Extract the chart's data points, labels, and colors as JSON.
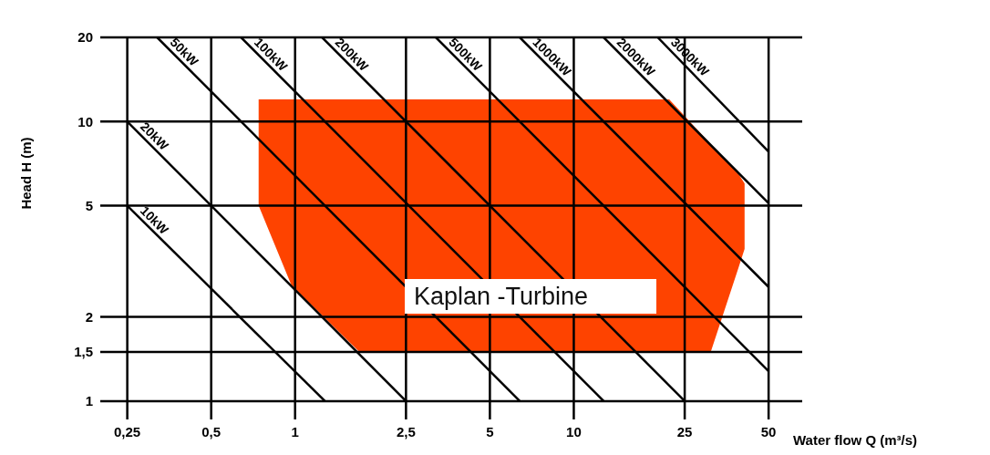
{
  "chart_data": {
    "type": "line",
    "xlabel": "Water flow Q (m³/s)",
    "ylabel": "Head H (m)",
    "log": "xy",
    "xlim": [
      0.2,
      66
    ],
    "ylim": [
      0.86,
      20
    ],
    "xticks": [
      {
        "value": 0.25,
        "label": "0,25"
      },
      {
        "value": 0.5,
        "label": "0,5"
      },
      1,
      {
        "value": 2.5,
        "label": "2,5"
      },
      5,
      10,
      25,
      50
    ],
    "yticks": [
      1,
      {
        "value": 1.5,
        "label": "1,5"
      },
      2,
      5,
      10,
      20
    ],
    "grid": true,
    "annotations": [
      "Kaplan -Turbine"
    ],
    "series": [
      {
        "type": "area",
        "color": "#fe4300",
        "x": [
          0.74,
          0.97,
          1.7,
          22,
          31,
          39,
          41
        ],
        "values": [
          null,
          null,
          null,
          null,
          null,
          null,
          null
        ],
        "upper": [
          12,
          12,
          12,
          12,
          8.3,
          6.5,
          6
        ],
        "lower": [
          5,
          2.6,
          1.5,
          1.5,
          1.5,
          3,
          3.5
        ]
      },
      {
        "name": "10kW",
        "color": "#000000",
        "x": [
          0.25,
          1.28
        ],
        "values": [
          5,
          1
        ]
      },
      {
        "name": "20kW",
        "color": "#000000",
        "x": [
          0.25,
          2.5
        ],
        "values": [
          10,
          1
        ]
      },
      {
        "name": "50kW",
        "color": "#000000",
        "x": [
          0.32,
          6.4
        ],
        "values": [
          20,
          1
        ]
      },
      {
        "name": "100kW",
        "color": "#000000",
        "x": [
          0.64,
          12.8
        ],
        "values": [
          20,
          1
        ]
      },
      {
        "name": "200kW",
        "color": "#000000",
        "x": [
          1.25,
          25
        ],
        "values": [
          20,
          1
        ]
      },
      {
        "name": "500kW",
        "color": "#000000",
        "x": [
          3.2,
          50
        ],
        "values": [
          20,
          1.28
        ]
      },
      {
        "name": "1000kW",
        "color": "#000000",
        "x": [
          6.4,
          50
        ],
        "values": [
          20,
          2.56
        ]
      },
      {
        "name": "2000kW",
        "color": "#000000",
        "x": [
          12.8,
          50
        ],
        "values": [
          20,
          5.1
        ]
      },
      {
        "name": "3000kW",
        "color": "#000000",
        "x": [
          20,
          50
        ],
        "values": [
          20,
          7.8
        ]
      }
    ]
  }
}
